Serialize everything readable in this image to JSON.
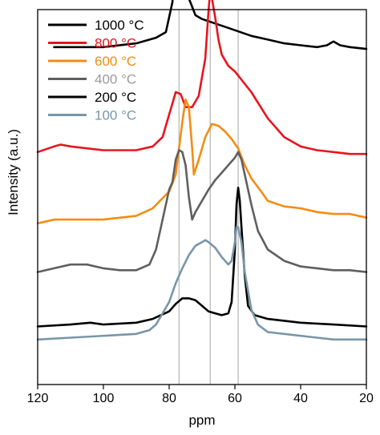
{
  "chart_data": {
    "type": "line",
    "title": "",
    "xlabel": "ppm",
    "ylabel": "Intensity (a.u.)",
    "xlim": [
      120,
      20
    ],
    "x_reversed": true,
    "x_ticks": [
      "120",
      "100",
      "80",
      "60",
      "40",
      "20"
    ],
    "x_tick_values": [
      120,
      100,
      80,
      60,
      40,
      20
    ],
    "y_ticks": [],
    "grid": false,
    "legend_position": "top-left",
    "reference_lines_ppm": [
      77,
      67.5,
      59
    ],
    "reference_line_color": "#b4b4b4",
    "legend": [
      {
        "label": "1000 °C",
        "line_color": "#000000",
        "text_color": "#000000"
      },
      {
        "label": "800 °C",
        "line_color": "#e8141e",
        "text_color": "#e8141e"
      },
      {
        "label": "600 °C",
        "line_color": "#f48c14",
        "text_color": "#f48c14"
      },
      {
        "label": "400 °C",
        "line_color": "#5f5f5f",
        "text_color": "#9a9a9a"
      },
      {
        "label": "200 °C",
        "line_color": "#000000",
        "text_color": "#000000"
      },
      {
        "label": "100 °C",
        "line_color": "#7896a8",
        "text_color": "#7896a8"
      }
    ],
    "series": [
      {
        "name": "1000 °C",
        "color": "#000000",
        "points": [
          [
            115,
            0.9
          ],
          [
            100,
            0.9
          ],
          [
            90,
            0.91
          ],
          [
            84,
            0.925
          ],
          [
            81,
            0.94
          ],
          [
            79,
            1.02
          ],
          [
            78,
            1.25
          ],
          [
            77.5,
            1.5
          ],
          [
            77,
            1.65
          ],
          [
            76.5,
            1.62
          ],
          [
            76,
            1.42
          ],
          [
            75,
            1.15
          ],
          [
            74,
            1.03
          ],
          [
            72,
            0.985
          ],
          [
            70,
            0.975
          ],
          [
            65,
            0.96
          ],
          [
            60,
            0.945
          ],
          [
            55,
            0.93
          ],
          [
            50,
            0.92
          ],
          [
            45,
            0.91
          ],
          [
            40,
            0.905
          ],
          [
            35,
            0.9
          ],
          [
            32,
            0.905
          ],
          [
            30,
            0.915
          ],
          [
            28,
            0.905
          ],
          [
            25,
            0.9
          ],
          [
            20,
            0.895
          ]
        ]
      },
      {
        "name": "800 °C",
        "color": "#e8141e",
        "points": [
          [
            120,
            0.62
          ],
          [
            115,
            0.635
          ],
          [
            113,
            0.64
          ],
          [
            110,
            0.635
          ],
          [
            100,
            0.625
          ],
          [
            90,
            0.625
          ],
          [
            85,
            0.635
          ],
          [
            82,
            0.66
          ],
          [
            80,
            0.72
          ],
          [
            78,
            0.78
          ],
          [
            76.5,
            0.775
          ],
          [
            75,
            0.74
          ],
          [
            73,
            0.74
          ],
          [
            71,
            0.77
          ],
          [
            69,
            0.87
          ],
          [
            68,
            1.0
          ],
          [
            67.5,
            1.05
          ],
          [
            67,
            1.03
          ],
          [
            66,
            0.98
          ],
          [
            65,
            0.92
          ],
          [
            64,
            0.88
          ],
          [
            62,
            0.85
          ],
          [
            60,
            0.835
          ],
          [
            55,
            0.78
          ],
          [
            50,
            0.71
          ],
          [
            45,
            0.66
          ],
          [
            40,
            0.635
          ],
          [
            35,
            0.625
          ],
          [
            30,
            0.62
          ],
          [
            25,
            0.615
          ],
          [
            20,
            0.615
          ]
        ]
      },
      {
        "name": "600 °C",
        "color": "#f48c14",
        "points": [
          [
            120,
            0.43
          ],
          [
            115,
            0.44
          ],
          [
            110,
            0.44
          ],
          [
            100,
            0.44
          ],
          [
            90,
            0.45
          ],
          [
            85,
            0.47
          ],
          [
            80,
            0.515
          ],
          [
            78,
            0.56
          ],
          [
            76,
            0.7
          ],
          [
            75,
            0.76
          ],
          [
            74,
            0.74
          ],
          [
            73,
            0.63
          ],
          [
            72.5,
            0.56
          ],
          [
            71,
            0.6
          ],
          [
            69,
            0.66
          ],
          [
            67,
            0.695
          ],
          [
            65,
            0.69
          ],
          [
            63,
            0.675
          ],
          [
            61,
            0.655
          ],
          [
            59,
            0.63
          ],
          [
            57,
            0.585
          ],
          [
            55,
            0.55
          ],
          [
            52,
            0.515
          ],
          [
            50,
            0.49
          ],
          [
            45,
            0.475
          ],
          [
            40,
            0.47
          ],
          [
            35,
            0.46
          ],
          [
            30,
            0.455
          ],
          [
            25,
            0.455
          ],
          [
            20,
            0.445
          ]
        ]
      },
      {
        "name": "400 °C",
        "color": "#5f5f5f",
        "points": [
          [
            120,
            0.3
          ],
          [
            115,
            0.31
          ],
          [
            110,
            0.32
          ],
          [
            105,
            0.32
          ],
          [
            100,
            0.31
          ],
          [
            95,
            0.305
          ],
          [
            90,
            0.305
          ],
          [
            86,
            0.32
          ],
          [
            84,
            0.36
          ],
          [
            82,
            0.44
          ],
          [
            80,
            0.52
          ],
          [
            79,
            0.54
          ],
          [
            78,
            0.6
          ],
          [
            77,
            0.625
          ],
          [
            76,
            0.62
          ],
          [
            75,
            0.585
          ],
          [
            74,
            0.5
          ],
          [
            73,
            0.44
          ],
          [
            72,
            0.46
          ],
          [
            70,
            0.49
          ],
          [
            68,
            0.52
          ],
          [
            66,
            0.545
          ],
          [
            64,
            0.565
          ],
          [
            62,
            0.585
          ],
          [
            60,
            0.605
          ],
          [
            59,
            0.62
          ],
          [
            58,
            0.6
          ],
          [
            57,
            0.56
          ],
          [
            55,
            0.48
          ],
          [
            53,
            0.41
          ],
          [
            50,
            0.36
          ],
          [
            45,
            0.33
          ],
          [
            40,
            0.315
          ],
          [
            35,
            0.31
          ],
          [
            30,
            0.305
          ],
          [
            25,
            0.305
          ],
          [
            20,
            0.3
          ]
        ]
      },
      {
        "name": "200 °C",
        "color": "#000000",
        "points": [
          [
            120,
            0.155
          ],
          [
            110,
            0.16
          ],
          [
            104,
            0.165
          ],
          [
            100,
            0.16
          ],
          [
            90,
            0.165
          ],
          [
            85,
            0.175
          ],
          [
            80,
            0.195
          ],
          [
            78,
            0.215
          ],
          [
            76,
            0.23
          ],
          [
            74,
            0.23
          ],
          [
            72,
            0.225
          ],
          [
            70,
            0.21
          ],
          [
            68,
            0.195
          ],
          [
            66,
            0.19
          ],
          [
            64,
            0.185
          ],
          [
            62,
            0.19
          ],
          [
            61,
            0.22
          ],
          [
            60,
            0.36
          ],
          [
            59.5,
            0.48
          ],
          [
            59,
            0.525
          ],
          [
            58.5,
            0.49
          ],
          [
            58,
            0.42
          ],
          [
            57,
            0.29
          ],
          [
            56,
            0.21
          ],
          [
            54,
            0.185
          ],
          [
            50,
            0.175
          ],
          [
            45,
            0.17
          ],
          [
            40,
            0.165
          ],
          [
            30,
            0.16
          ],
          [
            20,
            0.155
          ]
        ]
      },
      {
        "name": "100 °C",
        "color": "#7896a8",
        "points": [
          [
            120,
            0.12
          ],
          [
            110,
            0.125
          ],
          [
            100,
            0.13
          ],
          [
            90,
            0.135
          ],
          [
            86,
            0.145
          ],
          [
            84,
            0.16
          ],
          [
            82,
            0.19
          ],
          [
            80,
            0.22
          ],
          [
            78,
            0.27
          ],
          [
            76,
            0.31
          ],
          [
            74,
            0.345
          ],
          [
            72,
            0.37
          ],
          [
            70,
            0.38
          ],
          [
            69,
            0.385
          ],
          [
            68,
            0.38
          ],
          [
            66,
            0.365
          ],
          [
            64,
            0.34
          ],
          [
            62,
            0.32
          ],
          [
            61,
            0.33
          ],
          [
            60,
            0.38
          ],
          [
            59.5,
            0.42
          ],
          [
            59,
            0.42
          ],
          [
            58,
            0.38
          ],
          [
            57,
            0.3
          ],
          [
            55,
            0.2
          ],
          [
            53,
            0.16
          ],
          [
            50,
            0.14
          ],
          [
            45,
            0.135
          ],
          [
            40,
            0.13
          ],
          [
            35,
            0.125
          ],
          [
            30,
            0.12
          ],
          [
            20,
            0.12
          ]
        ]
      }
    ]
  }
}
